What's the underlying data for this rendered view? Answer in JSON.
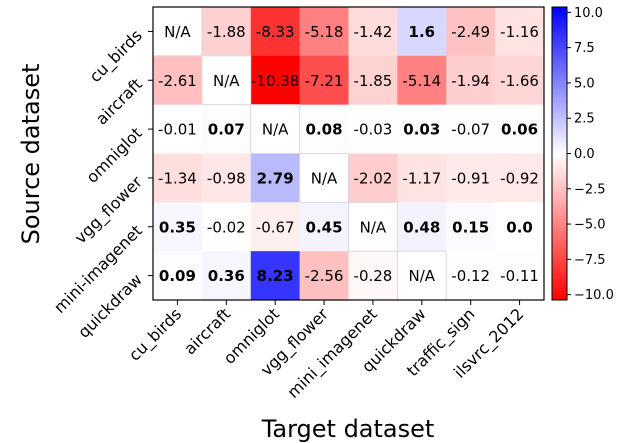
{
  "chart_data": {
    "type": "heatmap",
    "xlabel": "Target dataset",
    "ylabel": "Source dataset",
    "x_categories": [
      "cu_birds",
      "aircraft",
      "omniglot",
      "vgg_flower",
      "mini_imagenet",
      "quickdraw",
      "traffic_sign",
      "ilsvrc_2012"
    ],
    "y_categories": [
      "cu_birds",
      "aircraft",
      "omniglot",
      "vgg_flower",
      "mini-imagenet",
      "quickdraw"
    ],
    "values": [
      [
        null,
        -1.88,
        -8.33,
        -5.18,
        -1.42,
        1.6,
        -2.49,
        -1.16
      ],
      [
        -2.61,
        null,
        -10.38,
        -7.21,
        -1.85,
        -5.14,
        -1.94,
        -1.66
      ],
      [
        -0.01,
        0.07,
        null,
        0.08,
        -0.03,
        0.03,
        -0.07,
        0.06
      ],
      [
        -1.34,
        -0.98,
        2.79,
        null,
        -2.02,
        -1.17,
        -0.91,
        -0.92
      ],
      [
        0.35,
        -0.02,
        -0.67,
        0.45,
        null,
        0.48,
        0.15,
        0.0
      ],
      [
        0.09,
        0.36,
        8.23,
        -2.56,
        -0.28,
        null,
        -0.12,
        -0.11
      ]
    ],
    "labels": [
      [
        "N/A",
        "-1.88",
        "-8.33",
        "-5.18",
        "-1.42",
        "1.6",
        "-2.49",
        "-1.16"
      ],
      [
        "-2.61",
        "N/A",
        "-10.38",
        "-7.21",
        "-1.85",
        "-5.14",
        "-1.94",
        "-1.66"
      ],
      [
        "-0.01",
        "0.07",
        "N/A",
        "0.08",
        "-0.03",
        "0.03",
        "-0.07",
        "0.06"
      ],
      [
        "-1.34",
        "-0.98",
        "2.79",
        "N/A",
        "-2.02",
        "-1.17",
        "-0.91",
        "-0.92"
      ],
      [
        "0.35",
        "-0.02",
        "-0.67",
        "0.45",
        "N/A",
        "0.48",
        "0.15",
        "0.0"
      ],
      [
        "0.09",
        "0.36",
        "8.23",
        "-2.56",
        "-0.28",
        "N/A",
        "-0.12",
        "-0.11"
      ]
    ],
    "bold": [
      [
        false,
        false,
        false,
        false,
        false,
        true,
        false,
        false
      ],
      [
        false,
        false,
        false,
        false,
        false,
        false,
        false,
        false
      ],
      [
        false,
        true,
        false,
        true,
        false,
        true,
        false,
        true
      ],
      [
        false,
        false,
        true,
        false,
        false,
        false,
        false,
        false
      ],
      [
        true,
        false,
        false,
        true,
        false,
        true,
        true,
        true
      ],
      [
        true,
        true,
        true,
        false,
        false,
        false,
        false,
        false
      ]
    ],
    "colorbar": {
      "min": -10.38,
      "max": 10.38,
      "ticks": [
        10.0,
        7.5,
        5.0,
        2.5,
        0.0,
        -2.5,
        -5.0,
        -7.5,
        -10.0
      ],
      "tick_labels": [
        "10.0",
        "7.5",
        "5.0",
        "2.5",
        "0.0",
        "−2.5",
        "−5.0",
        "−7.5",
        "−10.0"
      ],
      "colormap": "bwr_r",
      "colors": {
        "positive": "#0000ff",
        "neutral": "#ffffff",
        "negative": "#ff0000"
      }
    }
  }
}
